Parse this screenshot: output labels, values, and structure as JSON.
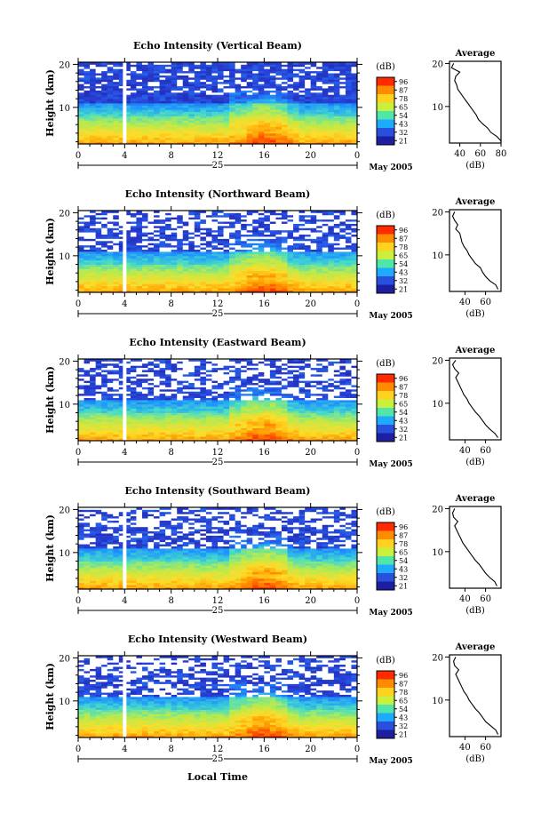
{
  "figure": {
    "date_label": "May 2005",
    "x_axis_title": "Local Time",
    "colorbar_unit": "(dB)",
    "colorbar_ticks": [
      "96",
      "87",
      "78",
      "65",
      "54",
      "43",
      "32",
      "21"
    ],
    "colorbar_colors": [
      "#ff2a00",
      "#ff8c00",
      "#ffd21e",
      "#c8f03c",
      "#50e6aa",
      "#1eaaff",
      "#2850dc",
      "#1e1ea0"
    ],
    "profile_title": "Average",
    "profile_xlabel": "(dB)"
  },
  "chart_data": [
    {
      "type": "heatmap",
      "title": "Echo Intensity (Vertical Beam)",
      "ylabel": "Height (km)",
      "xlabel": "25",
      "x_ticks": [
        "0",
        "4",
        "8",
        "12",
        "16",
        "20",
        "0"
      ],
      "y_ticks": [
        "20",
        "10"
      ],
      "xlim": [
        0,
        24
      ],
      "ylim": [
        1.5,
        20.5
      ],
      "colorbar": {
        "unit": "dB",
        "range": [
          21,
          96
        ]
      },
      "profile": {
        "title": "Average",
        "xlabel": "(dB)",
        "x_ticks": [
          "40",
          "60",
          "80"
        ],
        "y_ticks": [
          "20",
          "10"
        ],
        "xlim": [
          30,
          80
        ],
        "heights": [
          2,
          3,
          4,
          5,
          6,
          7,
          8,
          9,
          10,
          11,
          12,
          13,
          14,
          15,
          16,
          17,
          18,
          19,
          20
        ],
        "values": [
          80,
          76,
          70,
          67,
          62,
          58,
          56,
          53,
          50,
          47,
          44,
          41,
          38,
          37,
          35,
          36,
          40,
          32,
          34
        ]
      }
    },
    {
      "type": "heatmap",
      "title": "Echo Intensity (Northward Beam)",
      "ylabel": "Height (km)",
      "xlabel": "25",
      "x_ticks": [
        "0",
        "4",
        "8",
        "12",
        "16",
        "20",
        "0"
      ],
      "y_ticks": [
        "20",
        "10"
      ],
      "xlim": [
        0,
        24
      ],
      "ylim": [
        1.5,
        20.5
      ],
      "colorbar": {
        "unit": "dB",
        "range": [
          21,
          96
        ]
      },
      "profile": {
        "title": "Average",
        "xlabel": "(dB)",
        "x_ticks": [
          "40",
          "60"
        ],
        "y_ticks": [
          "20",
          "10"
        ],
        "xlim": [
          25,
          75
        ],
        "heights": [
          2,
          3,
          4,
          5,
          6,
          7,
          8,
          9,
          10,
          11,
          12,
          13,
          14,
          15,
          16,
          17,
          18,
          19,
          20
        ],
        "values": [
          72,
          70,
          64,
          60,
          57,
          55,
          50,
          47,
          44,
          42,
          39,
          37,
          36,
          35,
          31,
          33,
          30,
          28,
          30
        ]
      }
    },
    {
      "type": "heatmap",
      "title": "Echo Intensity (Eastward Beam)",
      "ylabel": "Height (km)",
      "xlabel": "25",
      "x_ticks": [
        "0",
        "4",
        "8",
        "12",
        "16",
        "20",
        "0"
      ],
      "y_ticks": [
        "20",
        "10"
      ],
      "xlim": [
        0,
        24
      ],
      "ylim": [
        1.5,
        20.5
      ],
      "colorbar": {
        "unit": "dB",
        "range": [
          21,
          96
        ]
      },
      "profile": {
        "title": "Average",
        "xlabel": "(dB)",
        "x_ticks": [
          "40",
          "60"
        ],
        "y_ticks": [
          "20",
          "10"
        ],
        "xlim": [
          25,
          75
        ],
        "heights": [
          2,
          3,
          4,
          5,
          6,
          7,
          8,
          9,
          10,
          11,
          12,
          13,
          14,
          15,
          16,
          17,
          18,
          19,
          20
        ],
        "values": [
          72,
          69,
          64,
          60,
          57,
          54,
          50,
          47,
          44,
          42,
          39,
          37,
          35,
          33,
          31,
          34,
          30,
          28,
          31
        ]
      }
    },
    {
      "type": "heatmap",
      "title": "Echo Intensity (Southward Beam)",
      "ylabel": "Height (km)",
      "xlabel": "25",
      "x_ticks": [
        "0",
        "4",
        "8",
        "12",
        "16",
        "20",
        "0"
      ],
      "y_ticks": [
        "20",
        "10"
      ],
      "xlim": [
        0,
        24
      ],
      "ylim": [
        1.5,
        20.5
      ],
      "colorbar": {
        "unit": "dB",
        "range": [
          21,
          96
        ]
      },
      "profile": {
        "title": "Average",
        "xlabel": "(dB)",
        "x_ticks": [
          "40",
          "60"
        ],
        "y_ticks": [
          "20",
          "10"
        ],
        "xlim": [
          25,
          75
        ],
        "heights": [
          2,
          3,
          4,
          5,
          6,
          7,
          8,
          9,
          10,
          11,
          12,
          13,
          14,
          15,
          16,
          17,
          18,
          19,
          20
        ],
        "values": [
          71,
          69,
          64,
          60,
          57,
          54,
          50,
          47,
          44,
          41,
          38,
          36,
          34,
          32,
          30,
          33,
          29,
          28,
          30
        ]
      }
    },
    {
      "type": "heatmap",
      "title": "Echo Intensity (Westward Beam)",
      "ylabel": "Height (km)",
      "xlabel": "25",
      "x_ticks": [
        "0",
        "4",
        "8",
        "12",
        "16",
        "20",
        "0"
      ],
      "y_ticks": [
        "20",
        "10"
      ],
      "xlim": [
        0,
        24
      ],
      "ylim": [
        1.5,
        20.5
      ],
      "colorbar": {
        "unit": "dB",
        "range": [
          21,
          96
        ]
      },
      "profile": {
        "title": "Average",
        "xlabel": "(dB)",
        "x_ticks": [
          "40",
          "60"
        ],
        "y_ticks": [
          "20",
          "10"
        ],
        "xlim": [
          25,
          75
        ],
        "heights": [
          2,
          3,
          4,
          5,
          6,
          7,
          8,
          9,
          10,
          11,
          12,
          13,
          14,
          15,
          16,
          17,
          18,
          19,
          20
        ],
        "values": [
          72,
          70,
          65,
          60,
          57,
          54,
          50,
          47,
          44,
          42,
          39,
          37,
          35,
          33,
          31,
          34,
          30,
          29,
          31
        ]
      }
    }
  ]
}
